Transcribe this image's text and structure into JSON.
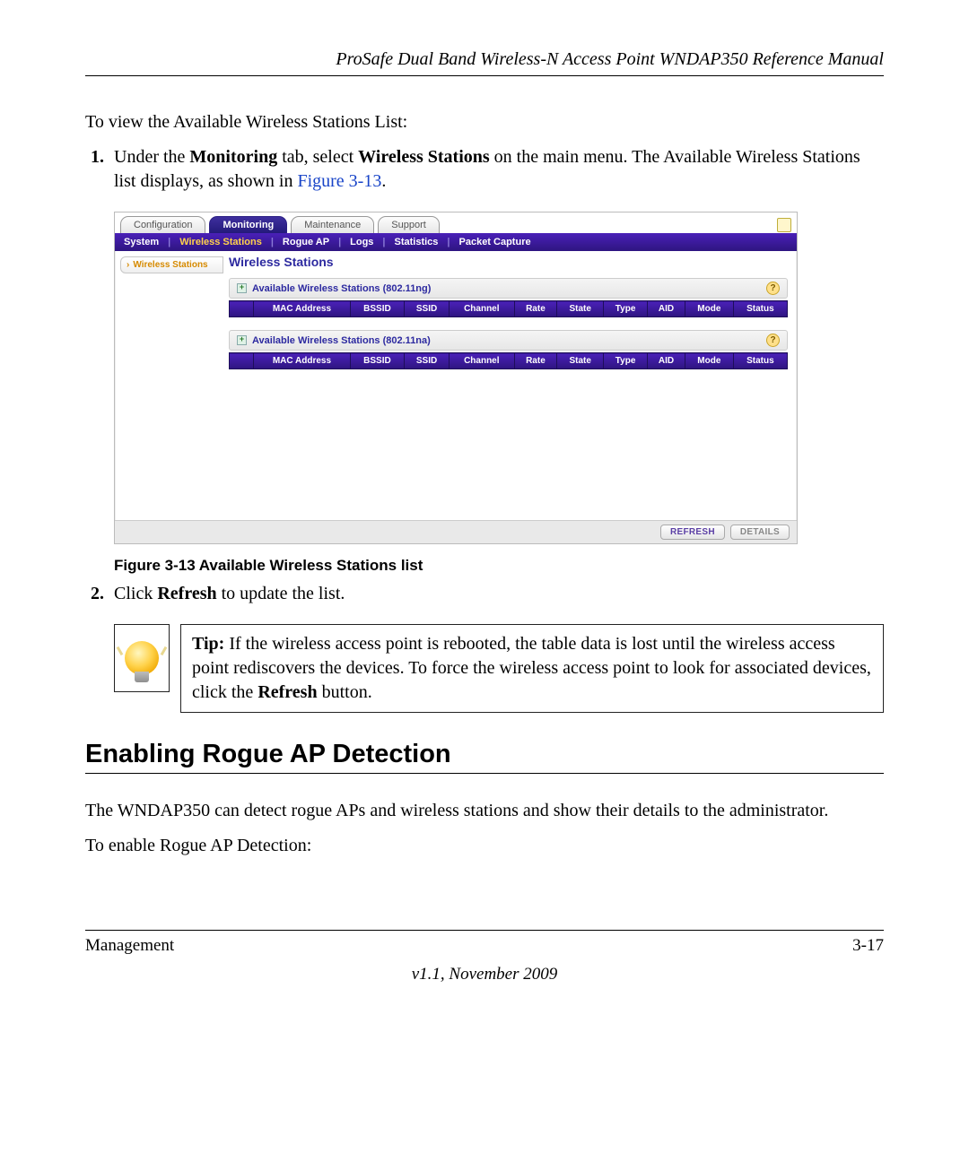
{
  "doc": {
    "header": "ProSafe Dual Band Wireless-N Access Point WNDAP350 Reference Manual",
    "footer_left": "Management",
    "footer_right": "3-17",
    "version": "v1.1, November 2009"
  },
  "intro": "To view the Available Wireless Stations List:",
  "step1": {
    "pre": "Under the ",
    "b1": "Monitoring",
    "mid1": " tab, select ",
    "b2": "Wireless Stations",
    "mid2": " on the main menu. The Available Wireless Stations list displays, as shown in ",
    "link": "Figure 3-13",
    "post": "."
  },
  "figure": {
    "caption": "Figure 3-13  Available Wireless Stations list",
    "tabs": [
      "Configuration",
      "Monitoring",
      "Maintenance",
      "Support"
    ],
    "active_tab": 1,
    "subnav": [
      "System",
      "Wireless Stations",
      "Rogue AP",
      "Logs",
      "Statistics",
      "Packet Capture"
    ],
    "subnav_selected": 1,
    "side_label": "Wireless Stations",
    "panel_title": "Wireless Stations",
    "sections": [
      "Available Wireless Stations (802.11ng)",
      "Available Wireless Stations (802.11na)"
    ],
    "columns": [
      "MAC Address",
      "BSSID",
      "SSID",
      "Channel",
      "Rate",
      "State",
      "Type",
      "AID",
      "Mode",
      "Status"
    ],
    "buttons": {
      "primary": "REFRESH",
      "secondary": "DETAILS"
    },
    "colors": {
      "purple_dark": "#2e1580",
      "purple_light": "#4a20b8",
      "accent_orange": "#d68a00",
      "title_blue": "#2d2aa0"
    }
  },
  "step2": {
    "pre": "Click ",
    "b1": "Refresh",
    "post": " to update the list."
  },
  "tip": {
    "label": "Tip:",
    "text1": " If the wireless access point is rebooted, the table data is lost until the wireless access point rediscovers the devices. To force the wireless access point to look for associated devices, click the ",
    "b1": "Refresh",
    "text2": " button."
  },
  "heading2": "Enabling Rogue AP Detection",
  "para2": "The WNDAP350 can detect rogue APs and wireless stations and show their details to the administrator.",
  "para3": "To enable Rogue AP Detection:"
}
